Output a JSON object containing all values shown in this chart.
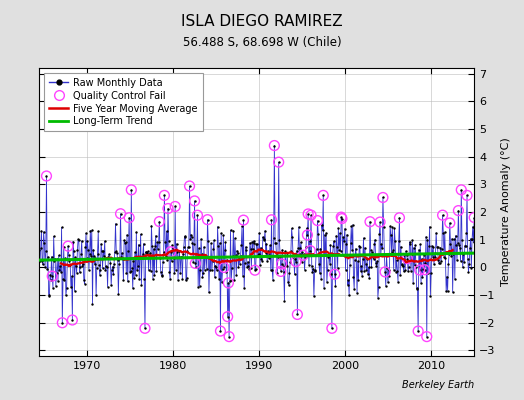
{
  "title": "ISLA DIEGO RAMIREZ",
  "subtitle": "56.488 S, 68.698 W (Chile)",
  "ylabel": "Temperature Anomaly (°C)",
  "xlabel_credit": "Berkeley Earth",
  "ylim": [
    -3.2,
    7.2
  ],
  "yticks": [
    -3,
    -2,
    -1,
    0,
    1,
    2,
    3,
    4,
    5,
    6,
    7
  ],
  "start_year": 1964.5,
  "end_year": 2015.0,
  "xticks": [
    1970,
    1980,
    1990,
    2000,
    2010
  ],
  "bg_color": "#e0e0e0",
  "plot_bg_color": "#ffffff",
  "line_color": "#3333cc",
  "dot_color": "#000000",
  "qc_color": "#ff44ff",
  "ma_color": "#dd0000",
  "trend_color": "#00bb00",
  "trend_slope": 0.005,
  "trend_intercept": 0.38,
  "seed": 42
}
